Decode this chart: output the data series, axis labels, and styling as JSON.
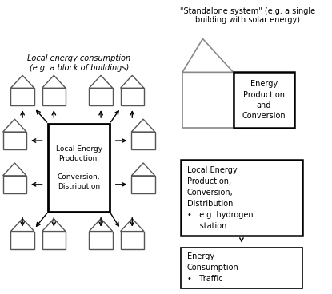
{
  "background_color": "#ffffff",
  "fig_width": 4.15,
  "fig_height": 3.68,
  "dpi": 100,
  "left_label": "Local energy consumption\n(e.g. a block of buildings)",
  "standalone_label": "\"Standalone system\" (e.g. a single\nbuilding with solar energy)",
  "center_text": "Local Energy\nProduction,\n\nConversion,\nDistribution",
  "ep_text": "Energy\nProduction\nand\nConversion",
  "mid_box_text": "Local Energy\nProduction,\nConversion,\nDistribution\n•   e.g. hydrogen\n     station",
  "bot_box_text": "Energy\nConsumption\n•   Traffic"
}
